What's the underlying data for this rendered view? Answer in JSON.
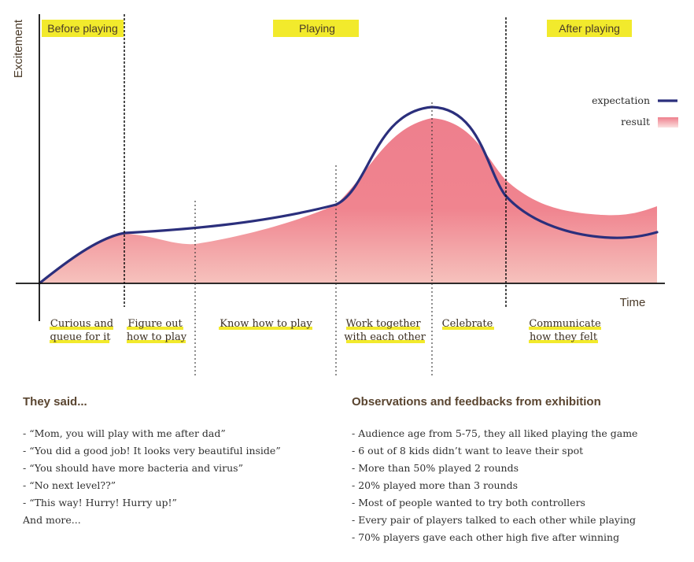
{
  "chart_data": {
    "type": "area",
    "title": "",
    "xlabel": "Time",
    "ylabel": "Excitement",
    "phases": [
      "Before playing",
      "Playing",
      "After playing"
    ],
    "stages": [
      [
        "Curious and",
        "queue for it"
      ],
      [
        "Figure out",
        "how to play"
      ],
      [
        "Know how to play"
      ],
      [
        "Work together",
        "with each other"
      ],
      [
        "Celebrate"
      ],
      [
        "Communicate",
        "how they felt"
      ]
    ],
    "legend": [
      "expectation",
      "result"
    ],
    "series": [
      {
        "name": "expectation",
        "color": "#2b2f7c",
        "x": [
          0,
          1,
          2,
          3,
          4,
          5,
          6,
          7
        ],
        "y": [
          0,
          3.0,
          3.3,
          4.5,
          10.5,
          3.3,
          2.7,
          3.0
        ]
      },
      {
        "name": "result",
        "color": "#ee7f8d",
        "x": [
          0,
          1,
          2,
          3,
          4,
          5,
          6,
          7
        ],
        "y": [
          0,
          3.0,
          2.5,
          4.3,
          10.0,
          4.4,
          4.0,
          4.5
        ]
      }
    ],
    "colors": {
      "axis": "#111111",
      "highlight": "#f2ea2c",
      "label_text": "#4a3a28"
    }
  },
  "feedback_left": {
    "title": "They said...",
    "items": [
      "- “Mom, you will play with me after dad”",
      "- “You did a good job! It looks very beautiful inside”",
      "- “You should have more bacteria and virus”",
      "- “No next level??”",
      "- “This way! Hurry! Hurry up!”",
      "And more..."
    ]
  },
  "feedback_right": {
    "title": "Observations and feedbacks from exhibition",
    "items": [
      "- Audience age from 5-75, they all liked playing the game",
      "- 6 out of 8 kids didn’t want to leave their spot",
      "- More than 50% played 2 rounds",
      "- 20% played more than 3 rounds",
      "- Most of people wanted to try both controllers",
      "- Every pair of players talked to each other while playing",
      "- 70% players gave each other high five after winning"
    ]
  }
}
